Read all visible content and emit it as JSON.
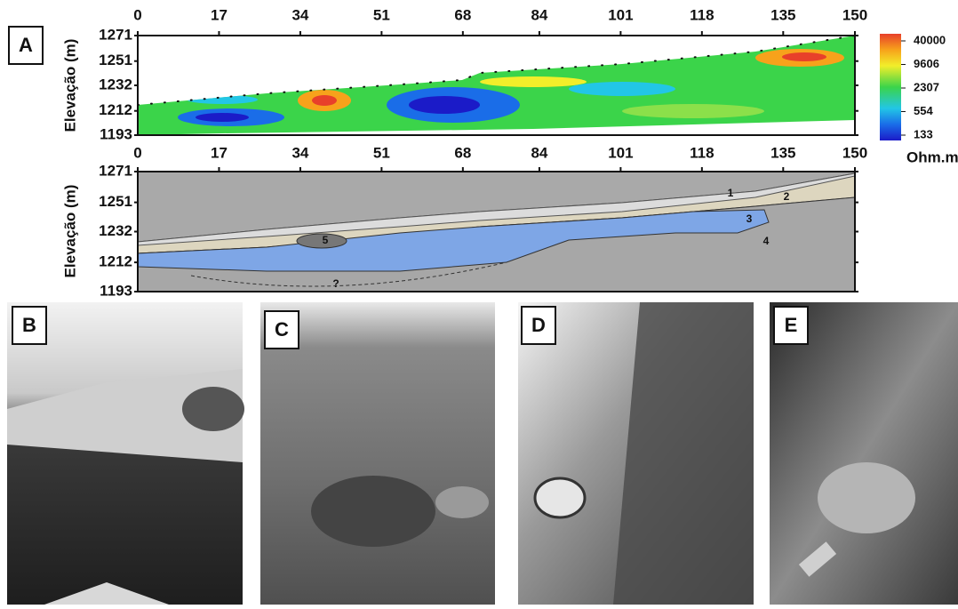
{
  "panel_labels": [
    "A",
    "B",
    "C",
    "D",
    "E"
  ],
  "resistivity_section": {
    "y_label": "Elevação (m)",
    "x_ticks": [
      0,
      17,
      34,
      51,
      68,
      84,
      101,
      118,
      135,
      150
    ],
    "y_ticks": [
      1271,
      1251,
      1232,
      1212,
      1193
    ],
    "colorbar": {
      "labels": [
        40000,
        9606,
        2307,
        554,
        133
      ],
      "unit": "Ohm.m"
    }
  },
  "geology_section": {
    "y_label": "Elevação (m)",
    "x_ticks": [
      0,
      17,
      34,
      51,
      68,
      84,
      101,
      118,
      135,
      150
    ],
    "y_ticks": [
      1271,
      1251,
      1232,
      1212,
      1193
    ],
    "layer_labels": [
      "1",
      "2",
      "3",
      "4",
      "5"
    ],
    "unknown_label": "?"
  }
}
